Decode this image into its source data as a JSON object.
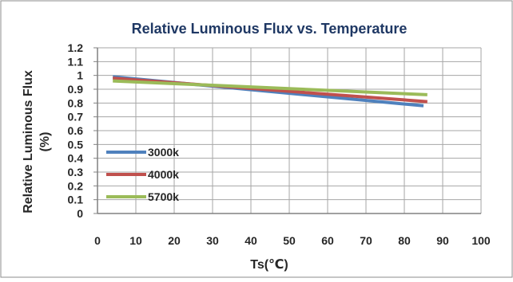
{
  "chart_data": {
    "type": "line",
    "title": "Relative Luminous Flux vs. Temperature",
    "xlabel": "Ts(℃)",
    "ylabel": "Relative Luminous Flux (%)",
    "ylabel_lines": [
      "Relative Luminous Flux",
      "(%)"
    ],
    "xlim": [
      0,
      100
    ],
    "ylim": [
      0,
      1.2
    ],
    "x_ticks": [
      "0",
      "10",
      "20",
      "30",
      "40",
      "50",
      "60",
      "70",
      "80",
      "90",
      "100"
    ],
    "y_ticks": [
      "0",
      "0.1",
      "0.2",
      "0.3",
      "0.4",
      "0.5",
      "0.6",
      "0.7",
      "0.8",
      "0.9",
      "1",
      "1.1",
      "1.2"
    ],
    "grid": true,
    "legend_position": "lower-left",
    "series": [
      {
        "name": "3000k",
        "color": "#4f81bd",
        "x": [
          4,
          85
        ],
        "y": [
          0.99,
          0.78
        ]
      },
      {
        "name": "4000k",
        "color": "#c0504d",
        "x": [
          4,
          86
        ],
        "y": [
          0.98,
          0.81
        ]
      },
      {
        "name": "5700k",
        "color": "#9bbb59",
        "x": [
          4,
          86
        ],
        "y": [
          0.96,
          0.86
        ]
      }
    ]
  }
}
